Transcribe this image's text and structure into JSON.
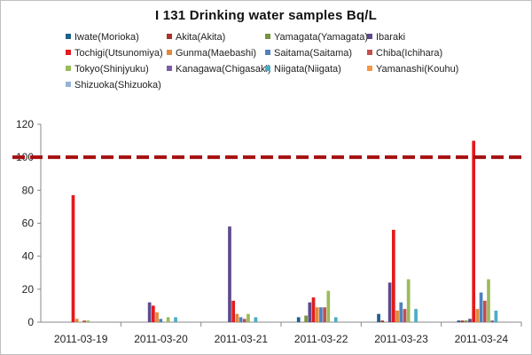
{
  "chart_data": {
    "type": "bar",
    "title": "I 131 Drinking water samples Bq/L",
    "xlabel": "",
    "ylabel": "",
    "ylim": [
      0,
      120
    ],
    "yticks": [
      0,
      20,
      40,
      60,
      80,
      100,
      120
    ],
    "grid": false,
    "legend_position": "top",
    "reference_line": {
      "value": 100,
      "color": "#a50f0f",
      "style": "dashed"
    },
    "categories": [
      "2011-03-19",
      "2011-03-20",
      "2011-03-21",
      "2011-03-22",
      "2011-03-23",
      "2011-03-24"
    ],
    "series": [
      {
        "name": "Iwate(Morioka)",
        "color": "#1f5f8b",
        "values": [
          0,
          0,
          0,
          3,
          5,
          1
        ]
      },
      {
        "name": "Akita(Akita)",
        "color": "#a8332b",
        "values": [
          0,
          0,
          0,
          0,
          1,
          1
        ]
      },
      {
        "name": "Yamagata(Yamagata)",
        "color": "#77943c",
        "values": [
          0,
          0,
          0,
          4,
          0,
          1
        ]
      },
      {
        "name": "Ibaraki",
        "color": "#5f4a8b",
        "values": [
          0,
          12,
          58,
          12,
          24,
          2
        ]
      },
      {
        "name": "Tochigi(Utsunomiya)",
        "color": "#e41a1c",
        "values": [
          77,
          10,
          13,
          15,
          56,
          110
        ]
      },
      {
        "name": "Gunma(Maebashi)",
        "color": "#e08a3c",
        "values": [
          2,
          6,
          5,
          9,
          7,
          8
        ]
      },
      {
        "name": "Saitama(Saitama)",
        "color": "#4f81bd",
        "values": [
          0,
          2,
          3,
          9,
          12,
          18
        ]
      },
      {
        "name": "Chiba(Ichihara)",
        "color": "#c0504d",
        "values": [
          1,
          0,
          2,
          9,
          8,
          13
        ]
      },
      {
        "name": "Tokyo(Shinjyuku)",
        "color": "#9bbb59",
        "values": [
          1,
          3,
          5,
          19,
          26,
          26
        ]
      },
      {
        "name": "Kanagawa(Chigasaki)",
        "color": "#7d5ba6",
        "values": [
          0,
          0,
          0,
          0,
          0,
          1
        ]
      },
      {
        "name": "Niigata(Niigata)",
        "color": "#4bacc6",
        "values": [
          0,
          3,
          3,
          3,
          8,
          7
        ]
      },
      {
        "name": "Yamanashi(Kouhu)",
        "color": "#f79646",
        "values": [
          0,
          0,
          0,
          0,
          0,
          0
        ]
      },
      {
        "name": "Shizuoka(Shizuoka)",
        "color": "#95b3d7",
        "values": [
          0,
          0,
          0,
          0,
          0,
          0
        ]
      }
    ]
  }
}
